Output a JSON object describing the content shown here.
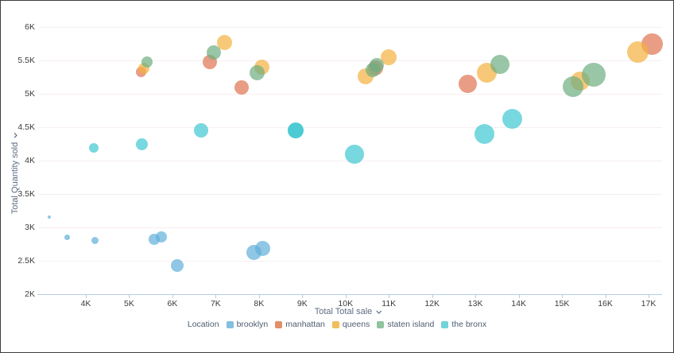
{
  "chart": {
    "y_axis": {
      "title": "Total Quantity sold"
    },
    "x_axis": {
      "title": "Total Total sale"
    },
    "legend": {
      "title": "Location",
      "items": [
        {
          "label": "brooklyn",
          "swatch": "#82C0E2"
        },
        {
          "label": "manhattan",
          "swatch": "#E28E69"
        },
        {
          "label": "queens",
          "swatch": "#F1BE5B"
        },
        {
          "label": "staten island",
          "swatch": "#8FC39E"
        },
        {
          "label": "the bronx",
          "swatch": "#70D4D9"
        }
      ]
    }
  },
  "chart_data": {
    "type": "scatter",
    "title": "",
    "xlabel": "Total Total sale",
    "ylabel": "Total Quantity sold",
    "xlim": [
      2900,
      17300
    ],
    "ylim": [
      2000,
      6000
    ],
    "grid": "horizontal",
    "legend_position": "bottom",
    "x_ticks": {
      "labels": [
        "4K",
        "5K",
        "6K",
        "7K",
        "8K",
        "9K",
        "10K",
        "11K",
        "12K",
        "13K",
        "14K",
        "15K",
        "16K",
        "17K"
      ],
      "values": [
        4000,
        5000,
        6000,
        7000,
        8000,
        9000,
        10000,
        11000,
        12000,
        13000,
        14000,
        15000,
        16000,
        17000
      ]
    },
    "y_ticks": {
      "labels": [
        "6K",
        "5.5K",
        "5K",
        "4.5K",
        "4K",
        "3.5K",
        "3K",
        "2.5K",
        "2K"
      ],
      "values": [
        6000,
        5500,
        5000,
        4500,
        4000,
        3500,
        3000,
        2500,
        2000
      ]
    },
    "series": [
      {
        "name": "brooklyn",
        "color": "#5FAFDA",
        "alpha": 0.7,
        "points": [
          {
            "x": 3160,
            "y": 3150,
            "r": 2
          },
          {
            "x": 3560,
            "y": 2850,
            "r": 3.5
          },
          {
            "x": 4220,
            "y": 2800,
            "r": 4.5
          },
          {
            "x": 5580,
            "y": 2820,
            "r": 7
          },
          {
            "x": 5740,
            "y": 2860,
            "r": 7
          },
          {
            "x": 6110,
            "y": 2430,
            "r": 8
          },
          {
            "x": 7890,
            "y": 2620,
            "r": 9.5
          },
          {
            "x": 8090,
            "y": 2690,
            "r": 9.5
          }
        ]
      },
      {
        "name": "manhattan",
        "color": "#DE7450",
        "alpha": 0.7,
        "points": [
          {
            "x": 5280,
            "y": 5330,
            "r": 6.5
          },
          {
            "x": 6860,
            "y": 5480,
            "r": 9
          },
          {
            "x": 7600,
            "y": 5100,
            "r": 9
          },
          {
            "x": 10700,
            "y": 5390,
            "r": 9.5
          },
          {
            "x": 12830,
            "y": 5150,
            "r": 11.5
          },
          {
            "x": 17080,
            "y": 5740,
            "r": 13.5
          }
        ]
      },
      {
        "name": "queens",
        "color": "#F3B03F",
        "alpha": 0.7,
        "points": [
          {
            "x": 5340,
            "y": 5380,
            "r": 7
          },
          {
            "x": 7210,
            "y": 5770,
            "r": 9.5
          },
          {
            "x": 8060,
            "y": 5400,
            "r": 9.5
          },
          {
            "x": 10460,
            "y": 5260,
            "r": 10
          },
          {
            "x": 10990,
            "y": 5550,
            "r": 10
          },
          {
            "x": 13270,
            "y": 5320,
            "r": 12.5
          },
          {
            "x": 15430,
            "y": 5190,
            "r": 12
          },
          {
            "x": 16750,
            "y": 5620,
            "r": 13.5
          }
        ]
      },
      {
        "name": "staten island",
        "color": "#6CAE80",
        "alpha": 0.7,
        "points": [
          {
            "x": 5410,
            "y": 5480,
            "r": 7
          },
          {
            "x": 6950,
            "y": 5620,
            "r": 9
          },
          {
            "x": 7960,
            "y": 5310,
            "r": 9.5
          },
          {
            "x": 10620,
            "y": 5360,
            "r": 9
          },
          {
            "x": 10720,
            "y": 5430,
            "r": 9
          },
          {
            "x": 13560,
            "y": 5440,
            "r": 12
          },
          {
            "x": 15250,
            "y": 5110,
            "r": 13
          },
          {
            "x": 15740,
            "y": 5290,
            "r": 15
          }
        ]
      },
      {
        "name": "the bronx",
        "color": "#3EC7D1",
        "alpha": 0.7,
        "points": [
          {
            "x": 4180,
            "y": 4190,
            "r": 6
          },
          {
            "x": 5300,
            "y": 4240,
            "r": 7.5
          },
          {
            "x": 6660,
            "y": 4450,
            "r": 9
          },
          {
            "x": 8840,
            "y": 4450,
            "r": 10,
            "a": 0.92
          },
          {
            "x": 10200,
            "y": 4100,
            "r": 12
          },
          {
            "x": 13210,
            "y": 4400,
            "r": 12.5
          },
          {
            "x": 13850,
            "y": 4630,
            "r": 12.5
          }
        ]
      }
    ]
  }
}
